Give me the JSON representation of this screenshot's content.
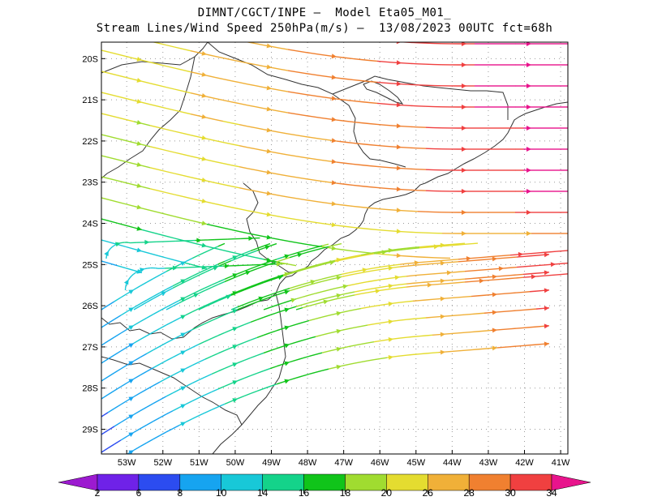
{
  "title_line1": "DIMNT/CGCT/INPE –  Model Eta05_M01_",
  "title_line2": "Stream Lines/Wind Speed 250hPa(m/s) –  13/08/2023 00UTC fct=68h",
  "map": {
    "lon_range": [
      -53.7,
      -40.8
    ],
    "lat_range": [
      -29.6,
      -19.6
    ],
    "lat_ticks": [
      "20S",
      "21S",
      "22S",
      "23S",
      "24S",
      "25S",
      "26S",
      "27S",
      "28S",
      "29S"
    ],
    "lon_ticks": [
      "53W",
      "52W",
      "51W",
      "50W",
      "49W",
      "48W",
      "47W",
      "46W",
      "45W",
      "44W",
      "43W",
      "42W",
      "41W"
    ],
    "grid": "dotted"
  },
  "colorbar": {
    "labels": [
      "2",
      "6",
      "8",
      "10",
      "14",
      "16",
      "18",
      "20",
      "26",
      "28",
      "30",
      "34"
    ],
    "colors": [
      "#9c1ad0",
      "#6f22e8",
      "#2c4cf0",
      "#16a4f0",
      "#18c8d8",
      "#14d38a",
      "#10c41a",
      "#a0dc30",
      "#e4dc30",
      "#f0b038",
      "#f08030",
      "#f04040",
      "#e8148c"
    ]
  }
}
